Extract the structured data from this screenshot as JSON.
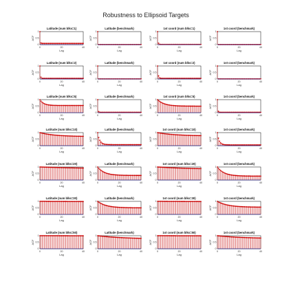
{
  "figure": {
    "title": "Robustness to Ellipsoid Targets"
  },
  "chart_data": {
    "type": "bar",
    "layout": "small-multiples grid, 7 rows x 4 columns",
    "title": "Robustness to Ellipsoid Targets",
    "xlabel": "Lag",
    "ylabel": "ACF",
    "xlim": [
      0,
      40
    ],
    "ylim": [
      0,
      1
    ],
    "xticks": [
      0,
      20,
      40
    ],
    "yticks": [
      0,
      0.5,
      1
    ],
    "ytick_labels": [
      "0",
      "0.5",
      "1"
    ],
    "grid": false,
    "colors": {
      "stem": "#cc2222",
      "marker": "#cc0000",
      "baseline": "#2a2a8a",
      "frame": "#000000"
    },
    "panels": [
      {
        "row": 1,
        "col": 1,
        "title": "Latitude (num blks=1)",
        "decay": 0.03,
        "floor": 0.1
      },
      {
        "row": 1,
        "col": 2,
        "title": "Latitude (benchmark)",
        "decay": 0.0,
        "floor": 0.0
      },
      {
        "row": 1,
        "col": 3,
        "title": "1st coord (num blks=1)",
        "decay": 0.1,
        "floor": 0.02
      },
      {
        "row": 1,
        "col": 4,
        "title": "1st coord (benchmark)",
        "decay": 0.0,
        "floor": 0.0
      },
      {
        "row": 2,
        "col": 1,
        "title": "Latitude (num blks=2)",
        "decay": 0.1,
        "floor": 0.05
      },
      {
        "row": 2,
        "col": 2,
        "title": "Latitude (benchmark)",
        "decay": 0.0,
        "floor": 0.0
      },
      {
        "row": 2,
        "col": 3,
        "title": "1st coord (num blks=2)",
        "decay": 0.2,
        "floor": 0.05
      },
      {
        "row": 2,
        "col": 4,
        "title": "1st coord (benchmark)",
        "decay": 0.0,
        "floor": 0.0
      },
      {
        "row": 3,
        "col": 1,
        "title": "Latitude (num blks=5)",
        "decay": 0.75,
        "floor": 0.55
      },
      {
        "row": 3,
        "col": 2,
        "title": "Latitude (benchmark)",
        "decay": 0.06,
        "floor": 0.03
      },
      {
        "row": 3,
        "col": 3,
        "title": "1st coord (num blks=5)",
        "decay": 0.85,
        "floor": 0.5
      },
      {
        "row": 3,
        "col": 4,
        "title": "1st coord (benchmark)",
        "decay": 0.08,
        "floor": 0.03
      },
      {
        "row": 4,
        "col": 1,
        "title": "Latitude (num blks=10)",
        "decay": 0.93,
        "floor": 0.7
      },
      {
        "row": 4,
        "col": 2,
        "title": "Latitude (benchmark)",
        "decay": 0.6,
        "floor": 0.08
      },
      {
        "row": 4,
        "col": 3,
        "title": "1st coord (num blks=10)",
        "decay": 0.94,
        "floor": 0.75
      },
      {
        "row": 4,
        "col": 4,
        "title": "1st coord (benchmark)",
        "decay": 0.55,
        "floor": 0.06
      },
      {
        "row": 5,
        "col": 1,
        "title": "Latitude (num blks=20)",
        "decay": 0.98,
        "floor": 0.85
      },
      {
        "row": 5,
        "col": 2,
        "title": "Latitude (benchmark)",
        "decay": 0.85,
        "floor": 0.35
      },
      {
        "row": 5,
        "col": 3,
        "title": "1st coord (num blks=20)",
        "decay": 0.97,
        "floor": 0.82
      },
      {
        "row": 5,
        "col": 4,
        "title": "1st coord (benchmark)",
        "decay": 0.85,
        "floor": 0.3
      },
      {
        "row": 6,
        "col": 1,
        "title": "Latitude (num blks=30)",
        "decay": 0.99,
        "floor": 0.95
      },
      {
        "row": 6,
        "col": 2,
        "title": "Latitude (benchmark)",
        "decay": 0.88,
        "floor": 0.5
      },
      {
        "row": 6,
        "col": 3,
        "title": "1st coord (num blks=30)",
        "decay": 0.99,
        "floor": 0.95
      },
      {
        "row": 6,
        "col": 4,
        "title": "1st coord (benchmark)",
        "decay": 0.9,
        "floor": 0.55
      },
      {
        "row": 7,
        "col": 1,
        "title": "Latitude (num blks=50)",
        "decay": 0.99,
        "floor": 0.98
      },
      {
        "row": 7,
        "col": 2,
        "title": "Latitude (benchmark)",
        "decay": 0.96,
        "floor": 0.75
      },
      {
        "row": 7,
        "col": 3,
        "title": "1st coord (num blks=50)",
        "decay": 0.99,
        "floor": 0.97
      },
      {
        "row": 7,
        "col": 4,
        "title": "1st coord (benchmark)",
        "decay": 0.96,
        "floor": 0.78
      }
    ]
  }
}
